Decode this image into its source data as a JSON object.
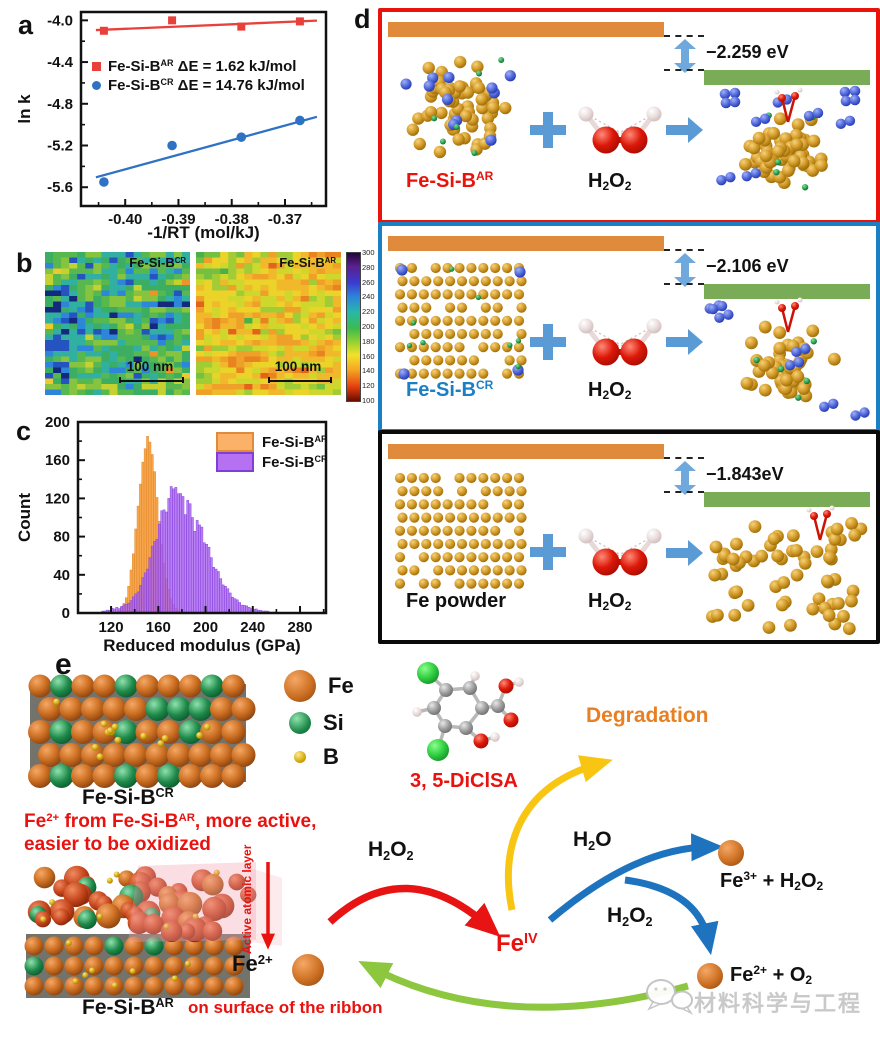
{
  "figure": {
    "panel_labels": {
      "a": "a",
      "b": "b",
      "c": "c",
      "d": "d",
      "e": "e"
    }
  },
  "colors": {
    "series_red": "#e8413c",
    "series_blue": "#2f72c3",
    "hist_orange": "#f9a74d",
    "hist_purple": "#a55ef0",
    "box_red": "#e8140c",
    "box_blue": "#1b7fc4",
    "box_black": "#0a0a0a",
    "bar_orange": "#e08a3c",
    "bar_green": "#7aab57",
    "gap_arrow_blue": "#6fa8dc",
    "arrow_red": "#e81313",
    "arrow_yellow": "#f9c513",
    "arrow_blue": "#1e73be",
    "arrow_green": "#8dc63f",
    "degradation_text": "#e87f22",
    "note_red": "#e8120f"
  },
  "panel_a": {
    "chart_data": {
      "type": "scatter-line",
      "xlabel": "-1/RT (mol/kJ)",
      "ylabel": "ln k",
      "xlim": [
        -0.4083,
        -0.3623
      ],
      "ylim": [
        -5.78,
        -3.92
      ],
      "xticks": [
        -0.4,
        -0.39,
        -0.38,
        -0.37
      ],
      "xtick_labels": [
        "-0.40",
        "-0.39",
        "-0.38",
        "-0.37"
      ],
      "yticks": [
        -4.0,
        -4.4,
        -4.8,
        -5.2,
        -5.6
      ],
      "ytick_labels": [
        "-4.0",
        "-4.4",
        "-4.8",
        "-5.2",
        "-5.6"
      ],
      "grid": false,
      "legend_position": "upper-left-inside",
      "series": [
        {
          "name": "Fe-Si-B^{AR} ΔE = 1.62 kJ/mol",
          "color": "#e8413c",
          "marker": "square",
          "x": [
            -0.404,
            -0.3912,
            -0.3782,
            -0.3672
          ],
          "y": [
            -4.1,
            -4.0,
            -4.06,
            -4.01
          ],
          "fit_line": {
            "x": [
              -0.4055,
              -0.364
            ],
            "y": [
              -4.093,
              -4.003
            ]
          }
        },
        {
          "name": "Fe-Si-B^{CR} ΔE = 14.76 kJ/mol",
          "color": "#2f72c3",
          "marker": "circle",
          "x": [
            -0.404,
            -0.3912,
            -0.3782,
            -0.3672
          ],
          "y": [
            -5.55,
            -5.2,
            -5.12,
            -4.96
          ],
          "fit_line": {
            "x": [
              -0.4055,
              -0.364
            ],
            "y": [
              -5.505,
              -4.925
            ]
          }
        }
      ]
    }
  },
  "panel_b": {
    "left_label": "Fe-Si-B^{CR}",
    "right_label": "Fe-Si-B^{AR}",
    "scale_bar": "100 nm",
    "colorbar_ticks": [
      "300",
      "280",
      "260",
      "240",
      "220",
      "200",
      "180",
      "160",
      "140",
      "120",
      "100"
    ],
    "cr_palette": [
      "#14287e",
      "#2553c0",
      "#2e86d8",
      "#31b0a2",
      "#3cae63",
      "#57b84f",
      "#86c440",
      "#c4d231",
      "#ecc92d",
      "#ee9426"
    ],
    "ar_palette": [
      "#2fa058",
      "#4bb04a",
      "#74c040",
      "#a2cc36",
      "#cdd72c",
      "#ecd32a",
      "#f2b82b",
      "#efa028",
      "#e8831f",
      "#e2641a"
    ]
  },
  "panel_c": {
    "chart_data": {
      "type": "histogram",
      "xlabel": "Reduced modulus (GPa)",
      "ylabel": "Count",
      "xlim": [
        92,
        302
      ],
      "ylim": [
        0,
        200
      ],
      "xticks": [
        120,
        160,
        200,
        240,
        280
      ],
      "yticks": [
        0,
        40,
        80,
        120,
        160,
        200
      ],
      "bin_width": 2,
      "series": [
        {
          "name": "Fe-Si-B^{AR}",
          "fill": "#f9a74d",
          "edge": "#e2882a",
          "start": 126,
          "counts": [
            3,
            6,
            10,
            16,
            28,
            45,
            62,
            88,
            112,
            135,
            158,
            172,
            185,
            179,
            166,
            148,
            121,
            96,
            72,
            52,
            36,
            25,
            15,
            9,
            5,
            3
          ]
        },
        {
          "name": "Fe-Si-B^{CR}",
          "fill": "#a55ef0",
          "edge": "#8b44e0",
          "start": 112,
          "counts": [
            2,
            2,
            3,
            3,
            5,
            4,
            6,
            5,
            7,
            8,
            9,
            11,
            13,
            16,
            20,
            24,
            29,
            35,
            42,
            50,
            58,
            66,
            75,
            84,
            93,
            101,
            108,
            115,
            120,
            125,
            130,
            143,
            125,
            118,
            122,
            112,
            118,
            108,
            100,
            93,
            97,
            87,
            90,
            80,
            72,
            65,
            58,
            52,
            46,
            41,
            36,
            32,
            28,
            24,
            21,
            18,
            15,
            13,
            11,
            9,
            8,
            7,
            6,
            5,
            4,
            4,
            3,
            3,
            2,
            2,
            2,
            1,
            1,
            1
          ]
        }
      ],
      "legend": [
        {
          "label": "Fe-Si-B^{AR}",
          "swatch": "#fbb268",
          "edge": "#e08a3c"
        },
        {
          "label": "Fe-Si-B^{CR}",
          "swatch": "#b571f2",
          "edge": "#7e3fd4"
        }
      ]
    }
  },
  "panel_d": {
    "plus": "+",
    "h2o2": "H_{2}O_{2}",
    "rows": [
      {
        "border": "#e8140c",
        "label": "Fe-Si-B^{AR}",
        "label_color": "#e8140c",
        "energy": "−2.259 eV",
        "cluster": {
          "kind": "amorphous",
          "gold": 60,
          "blue": 11,
          "green": 6
        },
        "product": {
          "gold": 56,
          "blue_pairs": 6,
          "blue_quads": 2,
          "green": 5,
          "oh": true,
          "spread": false
        }
      },
      {
        "border": "#1b7fc4",
        "label": "Fe-Si-B^{CR}",
        "label_color": "#1b7fc4",
        "energy": "−2.106 eV",
        "cluster": {
          "kind": "lattice",
          "gold": 95,
          "blue": 4,
          "green": 8
        },
        "product": {
          "gold": 56,
          "blue_pairs": 7,
          "blue_quads": 0,
          "green": 5,
          "oh": true,
          "spread": false
        }
      },
      {
        "border": "#0a0a0a",
        "label": "Fe powder",
        "label_color": "#111111",
        "energy": "−1.843eV",
        "cluster": {
          "kind": "lattice",
          "gold": 95,
          "blue": 0,
          "green": 0
        },
        "product": {
          "gold": 62,
          "blue_pairs": 0,
          "blue_quads": 0,
          "green": 0,
          "oh": true,
          "spread": true
        }
      }
    ]
  },
  "panel_e": {
    "cr_label": "Fe-Si-B^{CR}",
    "ar_label": "Fe-Si-B^{AR}",
    "legend": [
      {
        "label": "Fe"
      },
      {
        "label": "Si"
      },
      {
        "label": "B"
      }
    ],
    "note1": "Fe^{2+} from Fe-Si-B^{AR}, more active,",
    "note2": "easier to be oxidized",
    "active_layer": "Active atomic layer",
    "molecule_label": "3, 5-DiClSA",
    "degradation": "Degradation",
    "h2o2_left": "H_{2}O_{2}",
    "h2o": "H_{2}O",
    "h2o2_mid": "H_{2}O_{2}",
    "feiv": "Fe^{IV}",
    "fe3_label": "Fe^{3+} + H_{2}O_{2}",
    "fe2o2_label": "Fe^{2+} + O_{2}",
    "fe2_label": "Fe^{2+}",
    "on_surface": "on surface of the ribbon",
    "watermark": "材料科学与工程"
  }
}
